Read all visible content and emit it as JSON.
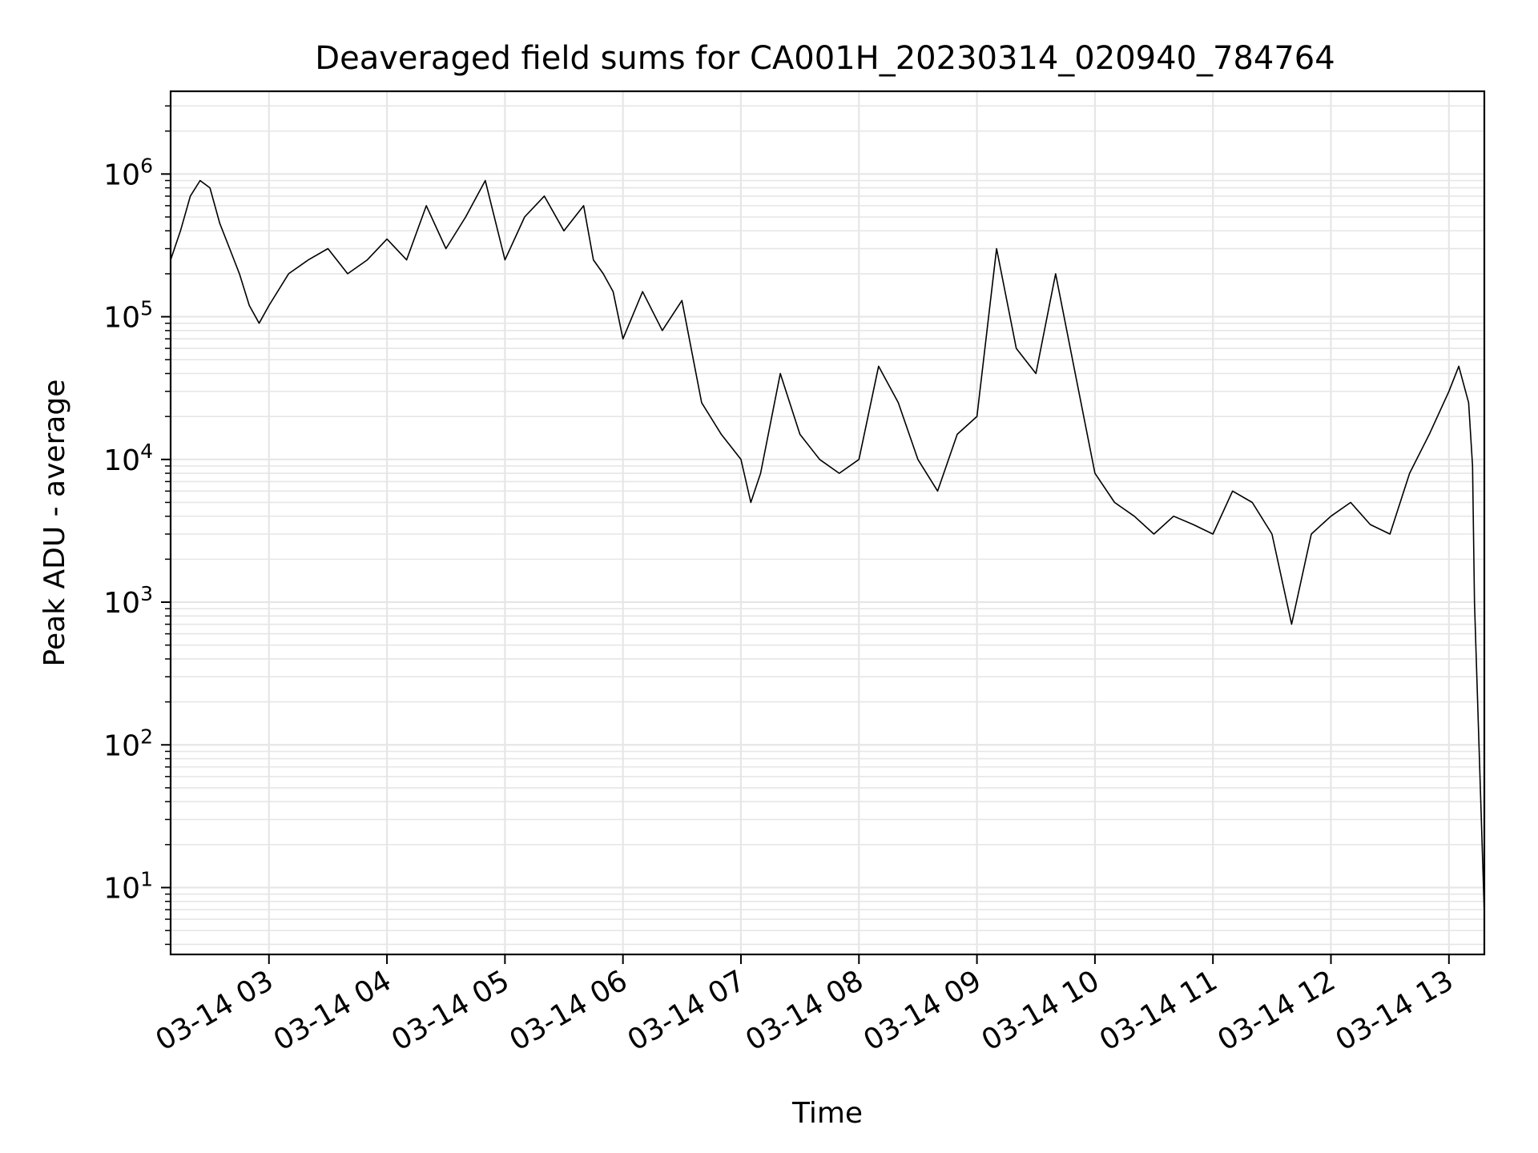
{
  "chart_data": {
    "type": "line",
    "title": "Deaveraged field sums for CA001H_20230314_020940_784764",
    "xlabel": "Time",
    "ylabel": "Peak ADU - average",
    "y_scale": "log",
    "ylim": [
      3.4,
      3800000
    ],
    "xlim": [
      "2023-03-14 02:10",
      "2023-03-14 13:18"
    ],
    "x_tick_labels": [
      "03-14 03",
      "03-14 04",
      "03-14 05",
      "03-14 06",
      "03-14 07",
      "03-14 08",
      "03-14 09",
      "03-14 10",
      "03-14 11",
      "03-14 12",
      "03-14 13"
    ],
    "y_tick_labels": [
      {
        "base": "10",
        "exp": "1"
      },
      {
        "base": "10",
        "exp": "2"
      },
      {
        "base": "10",
        "exp": "3"
      },
      {
        "base": "10",
        "exp": "4"
      },
      {
        "base": "10",
        "exp": "5"
      },
      {
        "base": "10",
        "exp": "6"
      }
    ],
    "grid": "major and minor",
    "line_color": "#000000",
    "series": [
      {
        "x": [
          "2023-03-14 02:10",
          "2023-03-14 02:15",
          "2023-03-14 02:20",
          "2023-03-14 02:25",
          "2023-03-14 02:30",
          "2023-03-14 02:35",
          "2023-03-14 02:40",
          "2023-03-14 02:45",
          "2023-03-14 02:50",
          "2023-03-14 02:55",
          "2023-03-14 03:00",
          "2023-03-14 03:10",
          "2023-03-14 03:20",
          "2023-03-14 03:30",
          "2023-03-14 03:40",
          "2023-03-14 03:50",
          "2023-03-14 04:00",
          "2023-03-14 04:10",
          "2023-03-14 04:20",
          "2023-03-14 04:30",
          "2023-03-14 04:40",
          "2023-03-14 04:50",
          "2023-03-14 05:00",
          "2023-03-14 05:10",
          "2023-03-14 05:20",
          "2023-03-14 05:30",
          "2023-03-14 05:40",
          "2023-03-14 05:45",
          "2023-03-14 05:50",
          "2023-03-14 05:55",
          "2023-03-14 06:00",
          "2023-03-14 06:10",
          "2023-03-14 06:20",
          "2023-03-14 06:30",
          "2023-03-14 06:40",
          "2023-03-14 06:50",
          "2023-03-14 07:00",
          "2023-03-14 07:05",
          "2023-03-14 07:10",
          "2023-03-14 07:20",
          "2023-03-14 07:30",
          "2023-03-14 07:40",
          "2023-03-14 07:50",
          "2023-03-14 08:00",
          "2023-03-14 08:10",
          "2023-03-14 08:20",
          "2023-03-14 08:30",
          "2023-03-14 08:40",
          "2023-03-14 08:50",
          "2023-03-14 09:00",
          "2023-03-14 09:10",
          "2023-03-14 09:20",
          "2023-03-14 09:30",
          "2023-03-14 09:40",
          "2023-03-14 09:50",
          "2023-03-14 10:00",
          "2023-03-14 10:10",
          "2023-03-14 10:20",
          "2023-03-14 10:30",
          "2023-03-14 10:40",
          "2023-03-14 10:50",
          "2023-03-14 11:00",
          "2023-03-14 11:10",
          "2023-03-14 11:20",
          "2023-03-14 11:30",
          "2023-03-14 11:40",
          "2023-03-14 11:50",
          "2023-03-14 12:00",
          "2023-03-14 12:10",
          "2023-03-14 12:20",
          "2023-03-14 12:30",
          "2023-03-14 12:40",
          "2023-03-14 12:50",
          "2023-03-14 13:00",
          "2023-03-14 13:05",
          "2023-03-14 13:10",
          "2023-03-14 13:12",
          "2023-03-14 13:13",
          "2023-03-14 13:18"
        ],
        "y": [
          250000,
          400000,
          700000,
          900000,
          800000,
          450000,
          300000,
          200000,
          120000,
          90000,
          120000,
          200000,
          250000,
          300000,
          200000,
          250000,
          350000,
          250000,
          600000,
          300000,
          500000,
          900000,
          250000,
          500000,
          700000,
          400000,
          600000,
          250000,
          200000,
          150000,
          70000,
          150000,
          80000,
          130000,
          25000,
          15000,
          10000,
          5000,
          8000,
          40000,
          15000,
          10000,
          8000,
          10000,
          45000,
          25000,
          10000,
          6000,
          15000,
          20000,
          300000,
          60000,
          40000,
          200000,
          40000,
          8000,
          5000,
          4000,
          3000,
          4000,
          3500,
          3000,
          6000,
          5000,
          3000,
          700,
          3000,
          4000,
          5000,
          3500,
          3000,
          8000,
          15000,
          30000,
          45000,
          25000,
          9000,
          1000,
          6.5
        ]
      }
    ]
  }
}
